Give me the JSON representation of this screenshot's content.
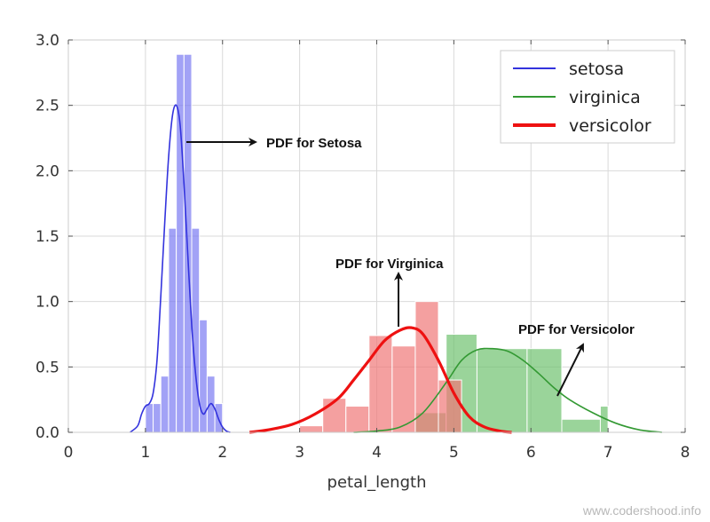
{
  "chart_data": {
    "type": "histogram+kde",
    "xlabel": "petal_length",
    "ylabel": "",
    "xlim": [
      0,
      8
    ],
    "ylim": [
      0,
      3.0
    ],
    "x_ticks": [
      "0",
      "1",
      "2",
      "3",
      "4",
      "5",
      "6",
      "7",
      "8"
    ],
    "y_ticks": [
      "0.0",
      "0.5",
      "1.0",
      "1.5",
      "2.0",
      "2.5",
      "3.0"
    ],
    "grid": true,
    "legend_position": "top-right",
    "series": [
      {
        "name": "setosa",
        "color": "#3333dd",
        "bar_color": "#7b7bf2",
        "bars": [
          {
            "x0": 1.0,
            "x1": 1.1,
            "h": 0.22
          },
          {
            "x0": 1.1,
            "x1": 1.2,
            "h": 0.22
          },
          {
            "x0": 1.2,
            "x1": 1.3,
            "h": 0.43
          },
          {
            "x0": 1.3,
            "x1": 1.4,
            "h": 1.56
          },
          {
            "x0": 1.4,
            "x1": 1.5,
            "h": 2.89
          },
          {
            "x0": 1.5,
            "x1": 1.6,
            "h": 2.89
          },
          {
            "x0": 1.6,
            "x1": 1.7,
            "h": 1.56
          },
          {
            "x0": 1.7,
            "x1": 1.8,
            "h": 0.86
          },
          {
            "x0": 1.8,
            "x1": 1.9,
            "h": 0.43
          },
          {
            "x0": 1.9,
            "x1": 2.0,
            "h": 0.22
          }
        ],
        "kde": {
          "x": [
            0.8,
            0.9,
            0.95,
            1.0,
            1.05,
            1.1,
            1.15,
            1.2,
            1.25,
            1.3,
            1.35,
            1.4,
            1.45,
            1.5,
            1.55,
            1.6,
            1.65,
            1.7,
            1.75,
            1.8,
            1.85,
            1.9,
            1.95,
            2.0,
            2.05,
            2.1
          ],
          "y": [
            0.0,
            0.05,
            0.14,
            0.2,
            0.22,
            0.3,
            0.55,
            1.05,
            1.6,
            2.1,
            2.42,
            2.5,
            2.35,
            1.9,
            1.35,
            0.82,
            0.45,
            0.22,
            0.14,
            0.18,
            0.22,
            0.18,
            0.1,
            0.04,
            0.01,
            0.0
          ]
        }
      },
      {
        "name": "virginica",
        "color": "#339933",
        "bar_color": "#6fc26f",
        "bars": [
          {
            "x0": 4.5,
            "x1": 4.9,
            "h": 0.15
          },
          {
            "x0": 4.9,
            "x1": 5.3,
            "h": 0.75
          },
          {
            "x0": 5.3,
            "x1": 5.95,
            "h": 0.64
          },
          {
            "x0": 5.95,
            "x1": 6.4,
            "h": 0.64
          },
          {
            "x0": 6.4,
            "x1": 6.9,
            "h": 0.1
          },
          {
            "x0": 6.9,
            "x1": 7.0,
            "h": 0.2
          }
        ],
        "kde": {
          "x": [
            3.7,
            4.0,
            4.3,
            4.6,
            4.9,
            5.1,
            5.3,
            5.5,
            5.7,
            5.9,
            6.1,
            6.3,
            6.5,
            6.8,
            7.1,
            7.4,
            7.7
          ],
          "y": [
            0.0,
            0.01,
            0.04,
            0.15,
            0.38,
            0.55,
            0.63,
            0.64,
            0.62,
            0.55,
            0.45,
            0.34,
            0.25,
            0.15,
            0.07,
            0.02,
            0.0
          ]
        }
      },
      {
        "name": "versicolor",
        "color": "#ee1111",
        "bar_color": "#f07878",
        "bars": [
          {
            "x0": 3.0,
            "x1": 3.3,
            "h": 0.05
          },
          {
            "x0": 3.3,
            "x1": 3.6,
            "h": 0.26
          },
          {
            "x0": 3.6,
            "x1": 3.9,
            "h": 0.2
          },
          {
            "x0": 3.9,
            "x1": 4.2,
            "h": 0.74
          },
          {
            "x0": 4.2,
            "x1": 4.5,
            "h": 0.66
          },
          {
            "x0": 4.5,
            "x1": 4.8,
            "h": 1.0
          },
          {
            "x0": 4.8,
            "x1": 5.1,
            "h": 0.4
          }
        ],
        "kde": {
          "x": [
            2.35,
            2.6,
            2.9,
            3.2,
            3.5,
            3.7,
            3.9,
            4.1,
            4.3,
            4.45,
            4.6,
            4.8,
            5.0,
            5.2,
            5.4,
            5.6,
            5.75
          ],
          "y": [
            0.0,
            0.02,
            0.06,
            0.14,
            0.26,
            0.4,
            0.55,
            0.7,
            0.78,
            0.8,
            0.75,
            0.55,
            0.3,
            0.12,
            0.04,
            0.01,
            0.0
          ]
        }
      }
    ],
    "annotations": [
      {
        "text": "PDF for Setosa"
      },
      {
        "text": "PDF for Virginica"
      },
      {
        "text": "PDF for Versicolor"
      }
    ]
  },
  "watermark": "www.codershood.info"
}
